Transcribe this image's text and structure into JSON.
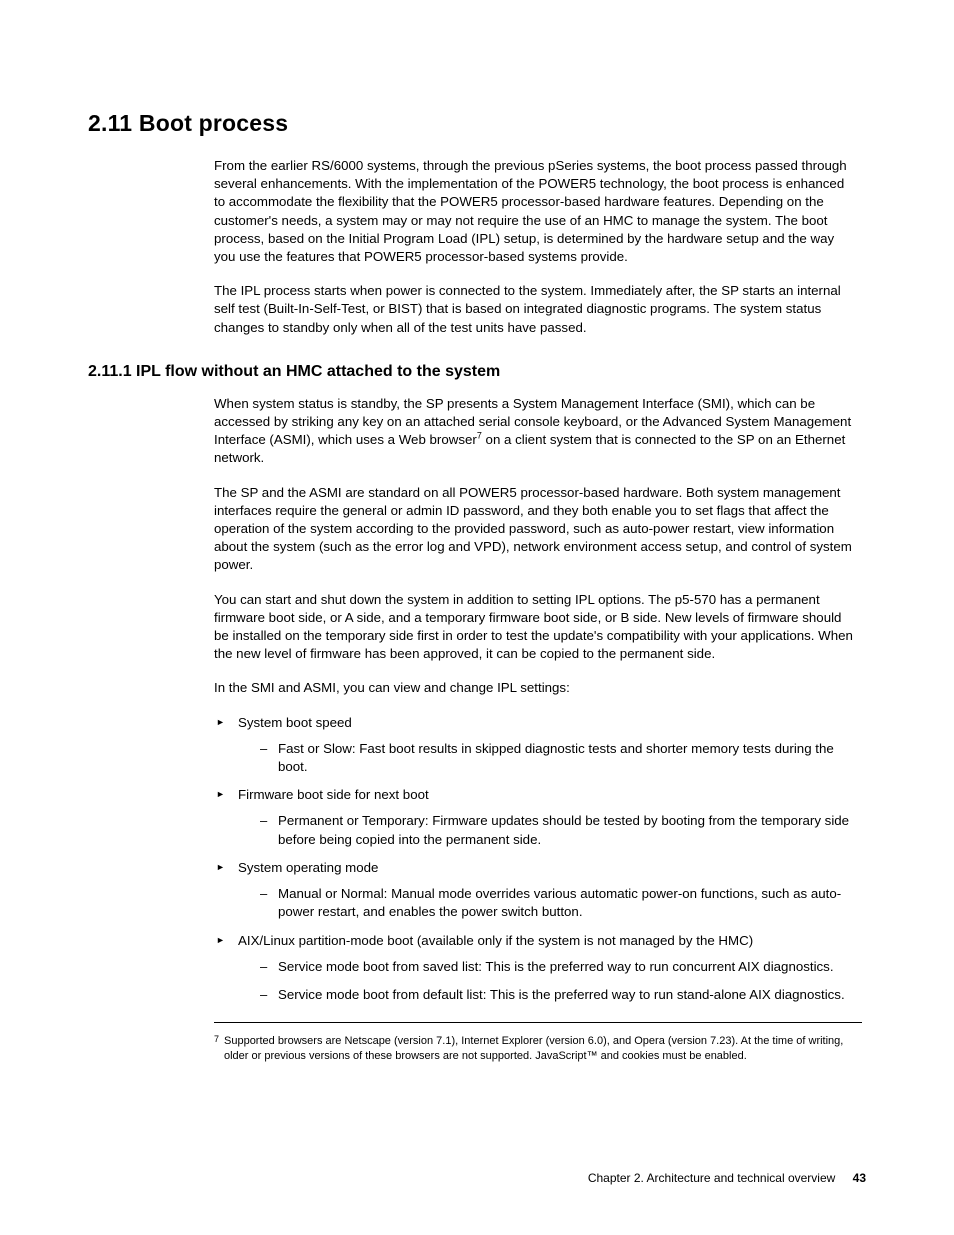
{
  "heading1": "2.11  Boot process",
  "para1": "From the earlier RS/6000 systems, through the previous pSeries systems, the boot process passed through several enhancements. With the implementation of the POWER5 technology, the boot process is enhanced to accommodate the flexibility that the POWER5 processor-based hardware features. Depending on the customer's needs, a system may or may not require the use of an HMC to manage the system. The boot process, based on the Initial Program Load (IPL) setup, is determined by the hardware setup and the way you use the features that POWER5 processor-based systems provide.",
  "para2": "The IPL process starts when power is connected to the system. Immediately after, the SP starts an internal self test (Built-In-Self-Test, or BIST) that is based on integrated diagnostic programs. The system status changes to standby only when all of the test units have passed.",
  "heading2": "2.11.1  IPL flow without an HMC attached to the system",
  "para3a": "When system status is standby, the SP presents a System Management Interface (SMI), which can be accessed by striking any key on an attached serial console keyboard, or the Advanced System Management Interface (ASMI), which uses a Web browser",
  "para3b": " on a client system that is connected to the SP on an Ethernet network.",
  "fnref": "7",
  "para4": "The SP and the ASMI are standard on all POWER5 processor-based hardware. Both system management interfaces require the general or admin ID password, and they both enable you to set flags that affect the operation of the system according to the provided password, such as auto-power restart, view information about the system (such as the error log and VPD), network environment access setup, and control of system power.",
  "para5": "You can start and shut down the system in addition to setting IPL options. The p5-570 has a permanent firmware boot side, or A side, and a temporary firmware boot side, or B side. New levels of firmware should be installed on the temporary side first in order to test the update's compatibility with your applications. When the new level of firmware has been approved, it can be copied to the permanent side.",
  "para6": "In the SMI and ASMI, you can view and change IPL settings:",
  "bullets": [
    {
      "label": "System boot speed",
      "sub": [
        "Fast or Slow: Fast boot results in skipped diagnostic tests and shorter memory tests during the boot."
      ]
    },
    {
      "label": "Firmware boot side for next boot",
      "sub": [
        "Permanent or Temporary: Firmware updates should be tested by booting from the temporary side before being copied into the permanent side."
      ]
    },
    {
      "label": "System operating mode",
      "sub": [
        "Manual or Normal: Manual mode overrides various automatic power-on functions, such as auto-power restart, and enables the power switch button."
      ]
    },
    {
      "label": "AIX/Linux partition-mode boot (available only if the system is not managed by the HMC)",
      "sub": [
        "Service mode boot from saved list: This is the preferred way to run concurrent AIX diagnostics.",
        "Service mode boot from default list: This is the preferred way to run stand-alone AIX diagnostics."
      ]
    }
  ],
  "footnote_num": "7",
  "footnote_text": "Supported browsers are Netscape (version 7.1), Internet Explorer (version 6.0), and Opera (version 7.23). At the time of writing, older or previous versions of these browsers are not supported. JavaScript™ and cookies must be enabled.",
  "footer_chapter": "Chapter 2. Architecture and technical overview",
  "footer_page": "43"
}
